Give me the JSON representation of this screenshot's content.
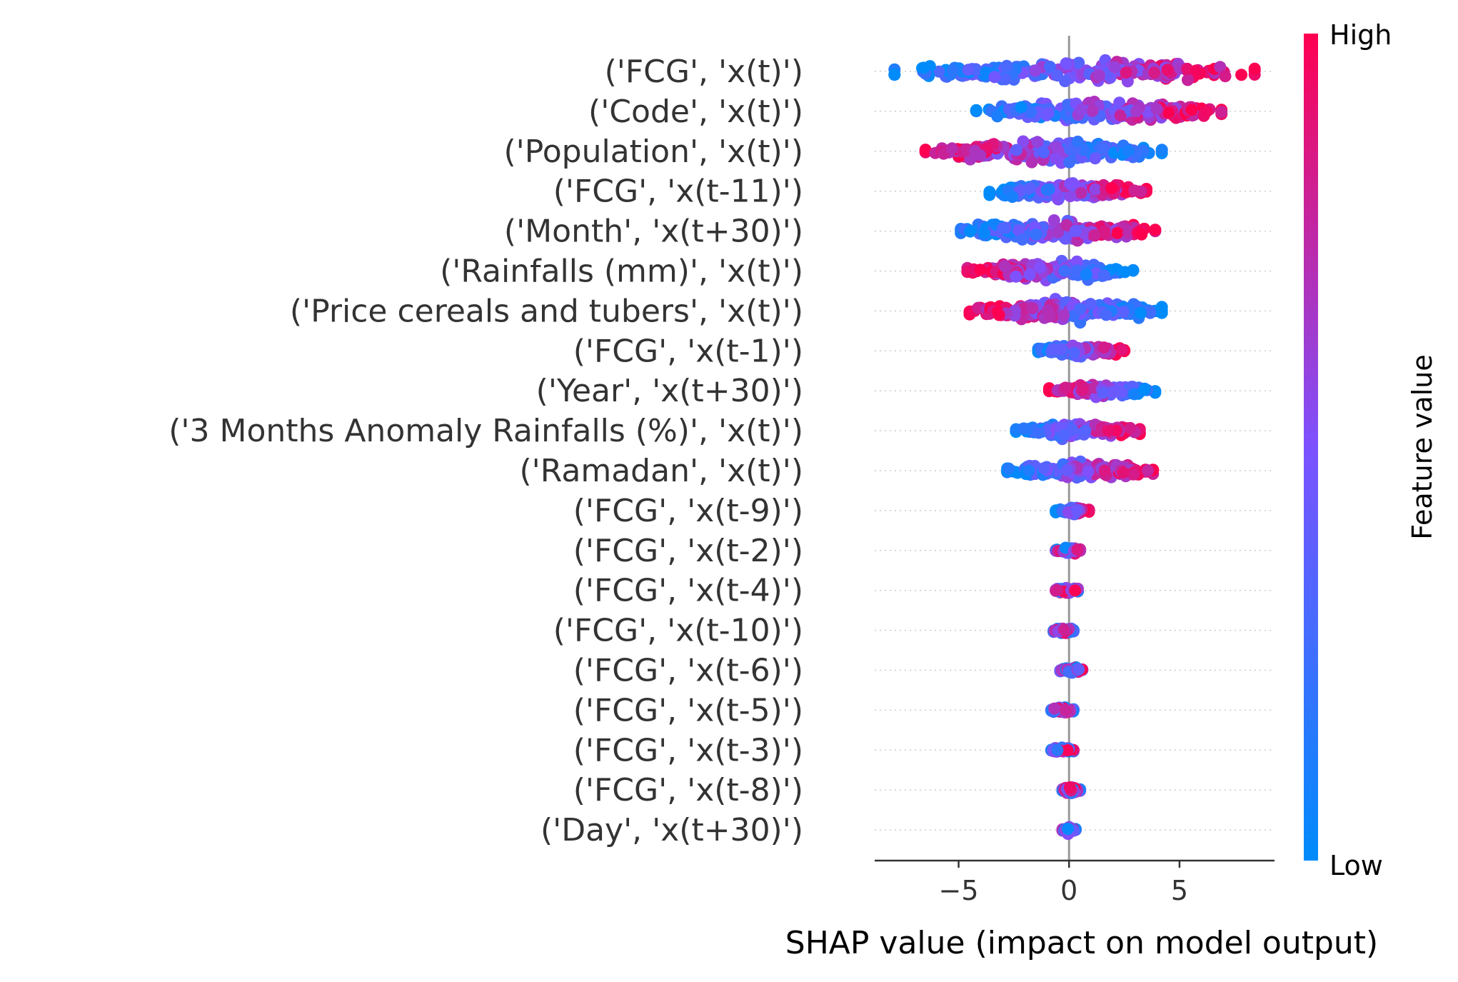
{
  "chart_data": {
    "type": "scatter",
    "subtype": "shap-beeswarm",
    "xlabel": "SHAP value (impact on model output)",
    "xticks": [
      -5,
      0,
      5
    ],
    "xlim": [
      -8.8,
      9.3
    ],
    "zero_line": 0,
    "colorbar": {
      "label": "Feature value",
      "high_label": "High",
      "low_label": "Low",
      "low_color": "#008bfb",
      "mid_color": "#7c52ff",
      "high_color": "#ff0051"
    },
    "features": [
      {
        "name": "('FCG', 'x(t)')",
        "min": -7.9,
        "max": 8.4
      },
      {
        "name": "('Code', 'x(t)')",
        "min": -4.2,
        "max": 6.9
      },
      {
        "name": "('Population', 'x(t)')",
        "min": -6.5,
        "max": 4.2
      },
      {
        "name": "('FCG', 'x(t-11)')",
        "min": -3.6,
        "max": 3.5
      },
      {
        "name": "('Month', 'x(t+30)')",
        "min": -4.9,
        "max": 3.9
      },
      {
        "name": "('Rainfalls (mm)', 'x(t)')",
        "min": -4.6,
        "max": 2.9
      },
      {
        "name": "('Price cereals and tubers', 'x(t)')",
        "min": -4.5,
        "max": 4.2
      },
      {
        "name": "('FCG', 'x(t-1)')",
        "min": -1.4,
        "max": 2.5
      },
      {
        "name": "('Year', 'x(t+30)')",
        "min": -0.9,
        "max": 3.9
      },
      {
        "name": "('3 Months Anomaly Rainfalls (%)', 'x(t)')",
        "min": -2.4,
        "max": 3.2
      },
      {
        "name": "('Ramadan', 'x(t)')",
        "min": -2.8,
        "max": 3.8
      },
      {
        "name": "('FCG', 'x(t-9)')",
        "min": -0.6,
        "max": 0.9
      },
      {
        "name": "('FCG', 'x(t-2)')",
        "min": -0.6,
        "max": 0.5
      },
      {
        "name": "('FCG', 'x(t-4)')",
        "min": -0.6,
        "max": 0.4
      },
      {
        "name": "('FCG', 'x(t-10)')",
        "min": -0.7,
        "max": 0.2
      },
      {
        "name": "('FCG', 'x(t-6)')",
        "min": -0.4,
        "max": 0.6
      },
      {
        "name": "('FCG', 'x(t-5)')",
        "min": -0.8,
        "max": 0.2
      },
      {
        "name": "('FCG', 'x(t-3)')",
        "min": -0.8,
        "max": 0.2
      },
      {
        "name": "('FCG', 'x(t-8)')",
        "min": -0.3,
        "max": 0.5
      },
      {
        "name": "('Day', 'x(t+30)')",
        "min": -0.3,
        "max": 0.3
      }
    ]
  }
}
